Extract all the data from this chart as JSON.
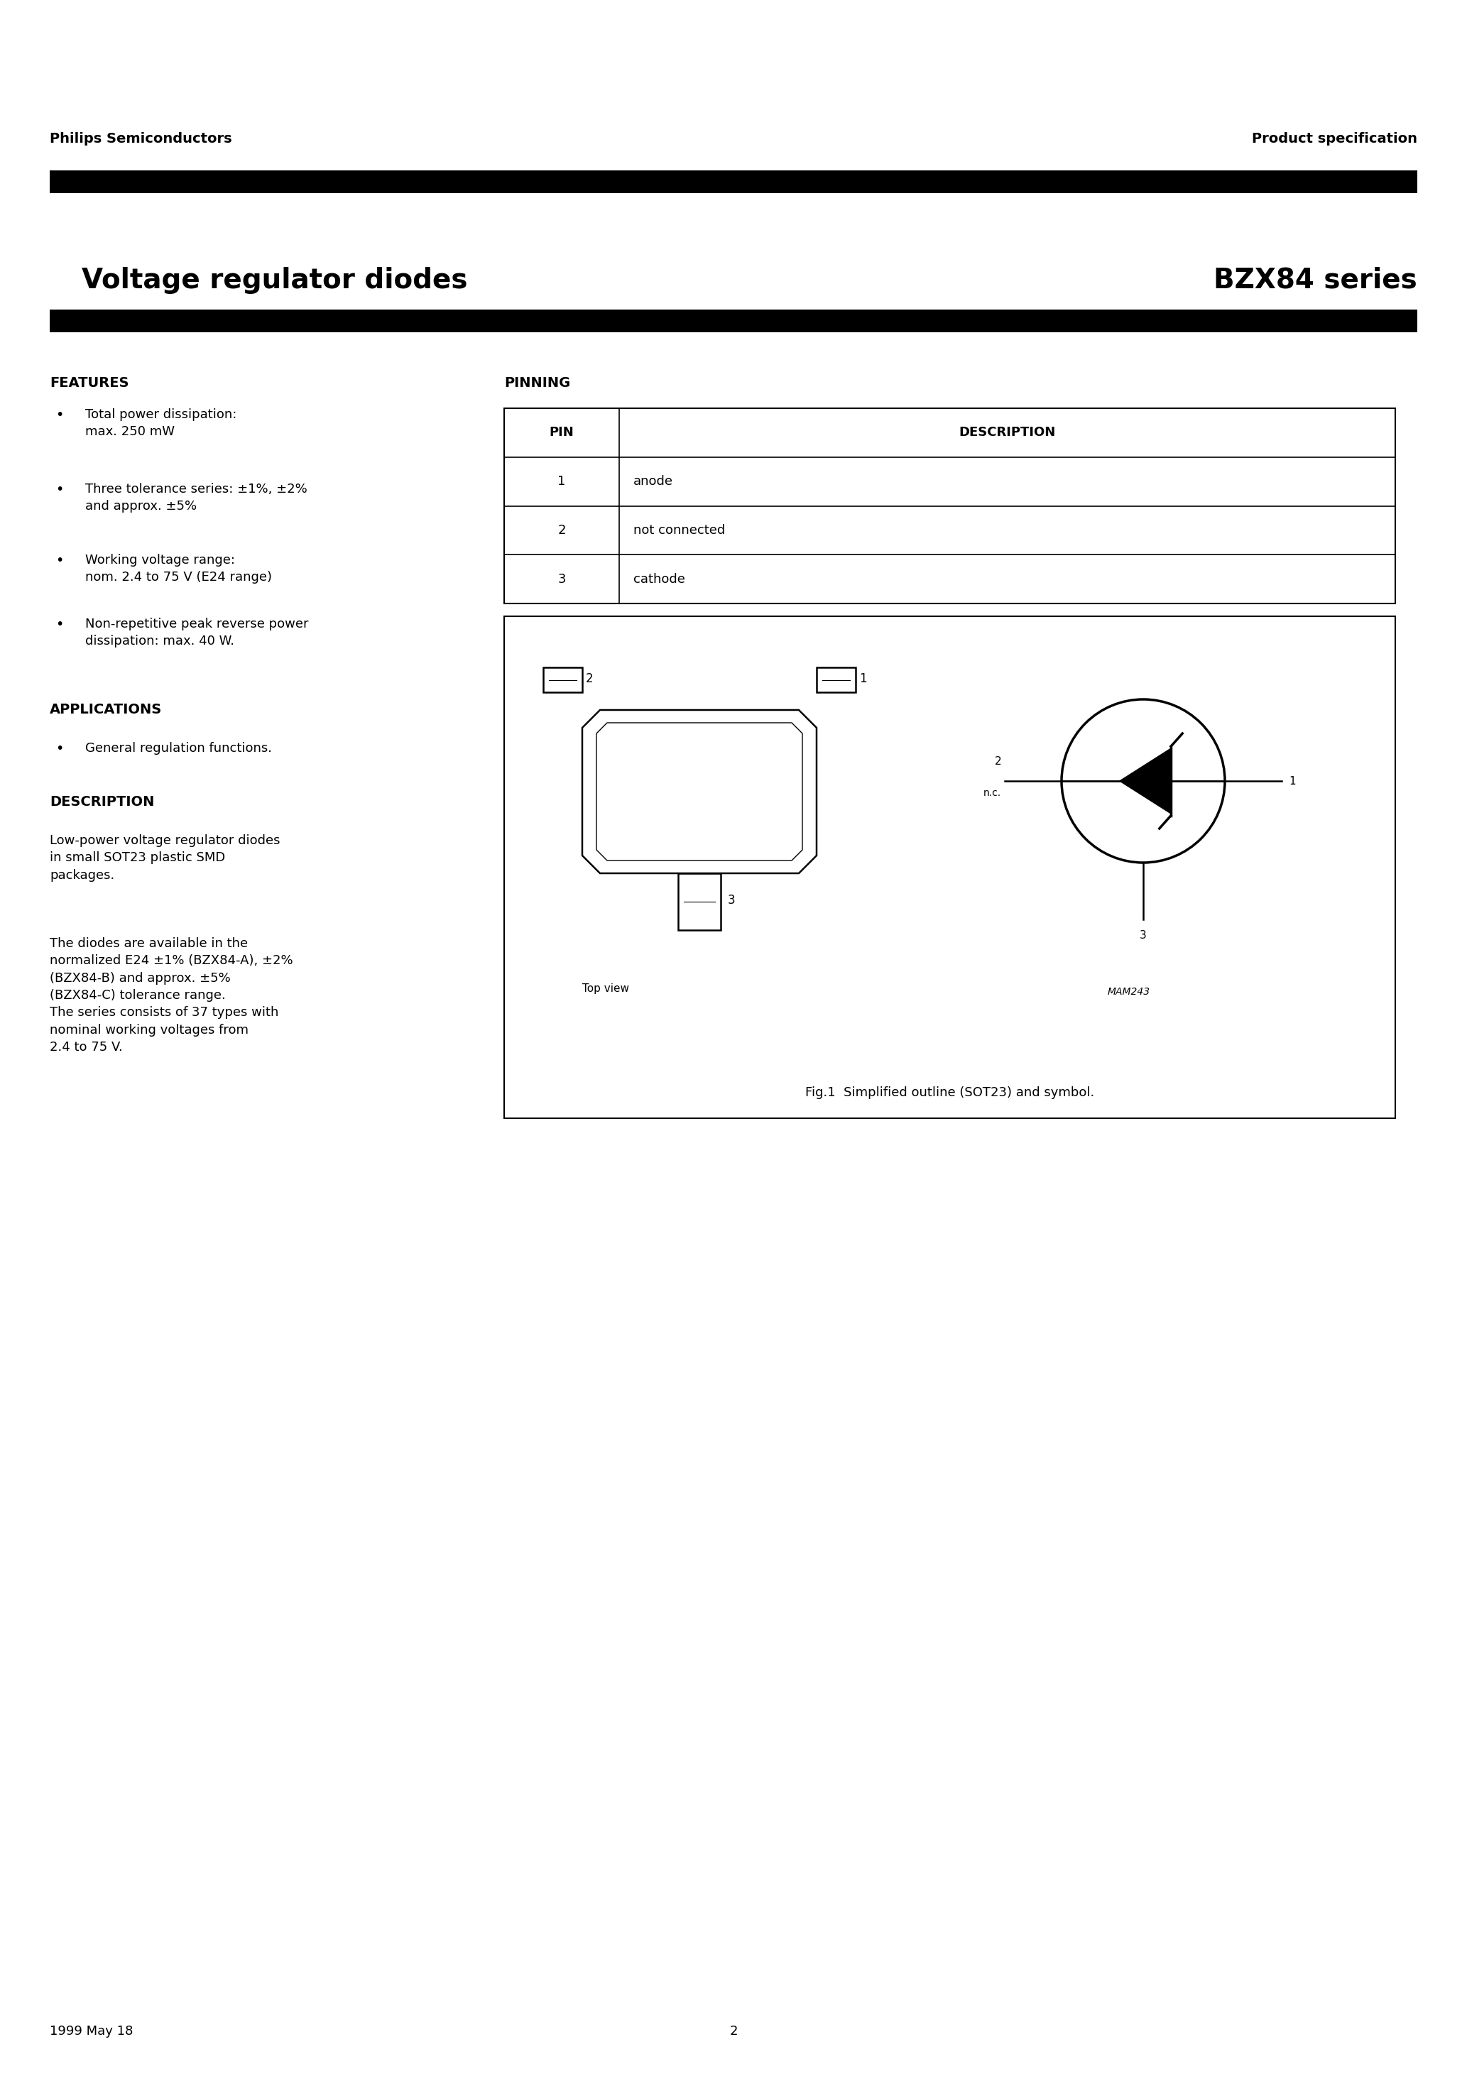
{
  "page_title_left": "Voltage regulator diodes",
  "page_title_right": "BZX84 series",
  "header_left": "Philips Semiconductors",
  "header_right": "Product specification",
  "features_title": "FEATURES",
  "features": [
    "Total power dissipation:\nmax. 250 mW",
    "Three tolerance series: ±1%, ±2%\nand approx. ±5%",
    "Working voltage range:\nnom. 2.4 to 75 V (E24 range)",
    "Non-repetitive peak reverse power\ndissipation: max. 40 W."
  ],
  "applications_title": "APPLICATIONS",
  "applications": [
    "General regulation functions."
  ],
  "description_title": "DESCRIPTION",
  "description_text1": "Low-power voltage regulator diodes\nin small SOT23 plastic SMD\npackages.",
  "description_text2": "The diodes are available in the\nnormalized E24 ±1% (BZX84-A), ±2%\n(BZX84-B) and approx. ±5%\n(BZX84-C) tolerance range.\nThe series consists of 37 types with\nnominal working voltages from\n2.4 to 75 V.",
  "pinning_title": "PINNING",
  "pin_headers": [
    "PIN",
    "DESCRIPTION"
  ],
  "pin_data": [
    [
      "1",
      "anode"
    ],
    [
      "2",
      "not connected"
    ],
    [
      "3",
      "cathode"
    ]
  ],
  "fig_caption": "Fig.1  Simplified outline (SOT23) and symbol.",
  "mam_label": "MAM243",
  "footer_left": "1999 May 18",
  "footer_center": "2",
  "bg_color": "#ffffff",
  "text_color": "#000000",
  "bar_color": "#000000"
}
